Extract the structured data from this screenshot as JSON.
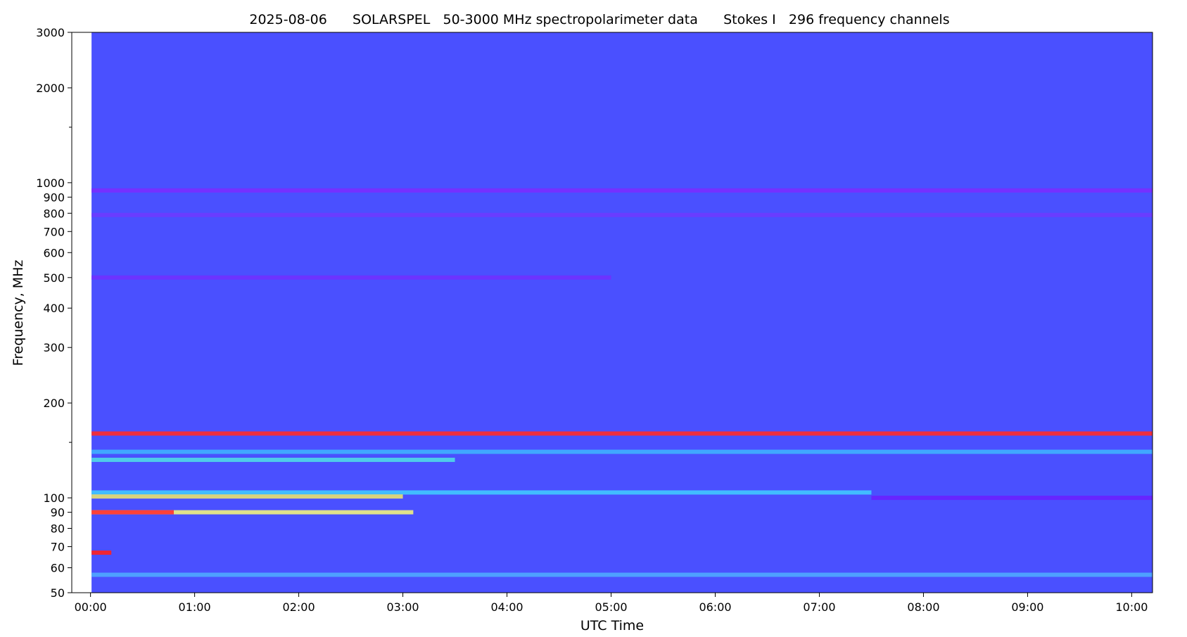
{
  "chart_data": {
    "type": "spectrogram",
    "title": "2025-08-06      SOLARSPEL   50-3000 MHz spectropolarimeter data      Stokes I   296 frequency channels",
    "xlabel": "UTC Time",
    "ylabel": "Frequency, MHz",
    "xlim": [
      -0.18,
      10.2
    ],
    "xticks": [
      {
        "value": 0,
        "label": "00:00"
      },
      {
        "value": 1,
        "label": "01:00"
      },
      {
        "value": 2,
        "label": "02:00"
      },
      {
        "value": 3,
        "label": "03:00"
      },
      {
        "value": 4,
        "label": "04:00"
      },
      {
        "value": 5,
        "label": "05:00"
      },
      {
        "value": 6,
        "label": "06:00"
      },
      {
        "value": 7,
        "label": "07:00"
      },
      {
        "value": 8,
        "label": "08:00"
      },
      {
        "value": 9,
        "label": "09:00"
      },
      {
        "value": 10,
        "label": "10:00"
      }
    ],
    "ylim": [
      50,
      3000
    ],
    "yscale": "log",
    "yticks": [
      50,
      60,
      70,
      80,
      90,
      100,
      200,
      300,
      400,
      500,
      600,
      700,
      800,
      900,
      1000,
      2000,
      3000
    ],
    "yminor": [
      150,
      1500
    ],
    "time_range": [
      0.01,
      10.2
    ],
    "background_color": "#4a50ff",
    "bands": [
      {
        "frequency": 945,
        "start": 0.01,
        "end": 10.2,
        "color": "#7a2cff"
      },
      {
        "frequency": 790,
        "start": 0.01,
        "end": 10.2,
        "color": "#6e3aff"
      },
      {
        "frequency": 500,
        "start": 0.01,
        "end": 5,
        "color": "#7030ff"
      },
      {
        "frequency": 57,
        "start": 0.01,
        "end": 10.2,
        "color": "#4fa8ff"
      },
      {
        "frequency": 132,
        "start": 0.01,
        "end": 3.5,
        "color": "#50d8e8"
      },
      {
        "frequency": 140,
        "start": 0.01,
        "end": 10.2,
        "color": "#3fb0ff"
      },
      {
        "frequency": 100,
        "start": 7.5,
        "end": 10.2,
        "color": "#6a20ff"
      },
      {
        "frequency": 104,
        "start": 0.01,
        "end": 7.5,
        "color": "#40c8ff"
      },
      {
        "frequency": 101,
        "start": 0.01,
        "end": 3,
        "color": "#e8e070"
      },
      {
        "frequency": 90,
        "start": 0.01,
        "end": 3.1,
        "color": "#f0f080"
      },
      {
        "frequency": 90,
        "start": 0.01,
        "end": 0.8,
        "color": "#ff3030"
      },
      {
        "frequency": 67,
        "start": 0.01,
        "end": 0.2,
        "color": "#ff2020"
      },
      {
        "frequency": 160,
        "start": 0.01,
        "end": 10.2,
        "color": "#ff2a2a"
      }
    ]
  }
}
